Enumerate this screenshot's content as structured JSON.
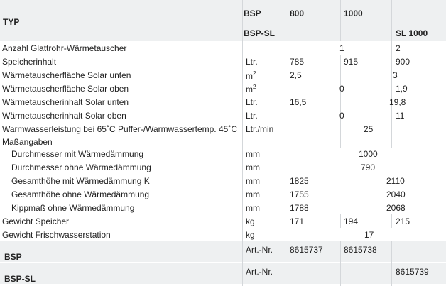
{
  "header": {
    "typ": "TYP",
    "bsp": "BSP",
    "bsp_sl": "BSP-SL",
    "c800": "800",
    "c1000": "1000",
    "sl1000": "SL 1000"
  },
  "rows": [
    {
      "label": "Anzahl Glattrohr-Wärmetauscher",
      "unit": "",
      "v": [
        "1",
        "2"
      ]
    },
    {
      "label": "Speicherinhalt",
      "unit": "Ltr.",
      "v": [
        "785",
        "915",
        "900"
      ]
    },
    {
      "label": "Wärmetauscherfläche Solar unten",
      "unit": "m",
      "unit_sup": "2",
      "v": [
        "2,5",
        "3"
      ]
    },
    {
      "label": "Wärmetauscherfläche Solar oben",
      "unit": "m",
      "unit_sup": "2",
      "v": [
        "0",
        "1,9"
      ]
    },
    {
      "label": "Wärmetauscherinhalt Solar unten",
      "unit": "Ltr.",
      "v": [
        "16,5",
        "19,8"
      ]
    },
    {
      "label": "Wärmetauscherinhalt Solar oben",
      "unit": "Ltr.",
      "v": [
        "0",
        "11"
      ]
    },
    {
      "label": "Warmwasserleistung bei 65˚C Puffer-/Warmwassertemp. 45˚C",
      "unit": "Ltr./min",
      "v": [
        "25"
      ]
    },
    {
      "label": "Maßangaben"
    },
    {
      "label": "Durchmesser mit Wärmedämmung",
      "unit": "mm",
      "v": [
        "1000"
      ]
    },
    {
      "label": "Durchmesser ohne Wärmedämmung",
      "unit": "mm",
      "v": [
        "790"
      ]
    },
    {
      "label": "Gesamthöhe mit Wärmedämmung K",
      "unit": "mm",
      "v": [
        "1825",
        "2110"
      ]
    },
    {
      "label": "Gesamthöhe ohne Wärmedämmung",
      "unit": "mm",
      "v": [
        "1755",
        "2040"
      ]
    },
    {
      "label": "Kippmaß ohne Wärmedämmung",
      "unit": "mm",
      "v": [
        "1788",
        "2068"
      ]
    },
    {
      "label": "Gewicht Speicher",
      "unit": "kg",
      "v": [
        "171",
        "194",
        "215"
      ]
    },
    {
      "label": "Gewicht Frischwasserstation",
      "unit": "kg",
      "v": [
        "17"
      ]
    }
  ],
  "articles": [
    {
      "label": "BSP",
      "unit": "Art.-Nr.",
      "v": [
        "8615737",
        "8615738"
      ]
    },
    {
      "label": "BSP-SL",
      "unit": "Art.-Nr.",
      "v": [
        "8615739"
      ]
    }
  ]
}
